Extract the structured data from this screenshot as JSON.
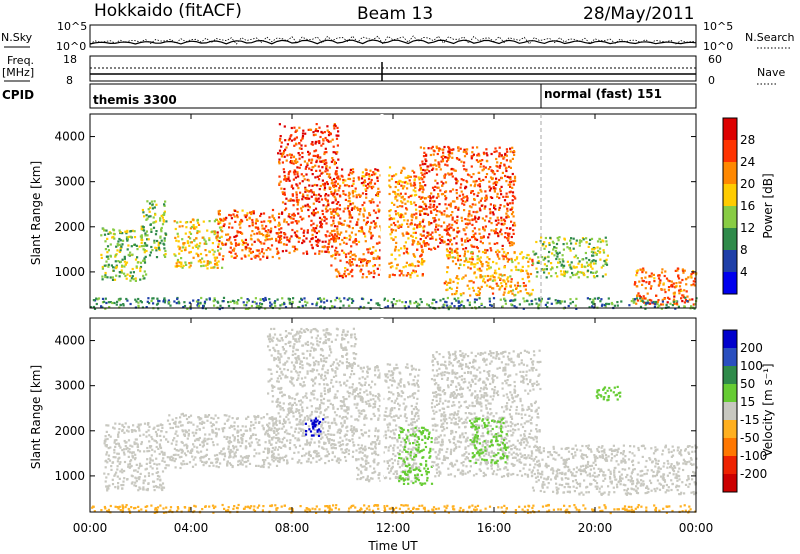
{
  "header": {
    "station": "Hokkaido (fitACF)",
    "beam": "Beam 13",
    "date": "28/May/2011"
  },
  "top_panels": {
    "nsky_label": "N.Sky",
    "nsky_ticks": [
      "10^5",
      "10^0"
    ],
    "nsearch_label": "N.Search",
    "nsearch_ticks": [
      "10^5",
      "10^0"
    ],
    "freq_label_1": "Freq.",
    "freq_label_2": "[MHz]",
    "freq_ticks": [
      "18",
      "8"
    ],
    "nave_label": "Nave",
    "nave_ticks": [
      "60",
      "0"
    ],
    "cpid_label": "CPID",
    "cpid_segments": [
      "themis 3300",
      "normal (fast) 151"
    ]
  },
  "chart_data": [
    {
      "type": "heatmap",
      "name": "power-panel",
      "ylabel": "Slant Range [km]",
      "ylim": [
        200,
        4500
      ],
      "yticks": [
        "4000",
        "3000",
        "2000",
        "1000"
      ],
      "x_hours": [
        0,
        24
      ],
      "colorbar": {
        "label": "Power [dB]",
        "ticks": [
          "28",
          "24",
          "20",
          "16",
          "12",
          "8",
          "4"
        ],
        "colors": [
          "#dd0000",
          "#ff3300",
          "#ff8800",
          "#ffcc00",
          "#88cc44",
          "#2f8a4a",
          "#1f3fa8",
          "#0000ee"
        ]
      },
      "echo_regions": [
        {
          "x": [
            0.4,
            2.2
          ],
          "y": [
            800,
            2000
          ],
          "level": 14
        },
        {
          "x": [
            2.0,
            3.0
          ],
          "y": [
            1300,
            2600
          ],
          "level": 13
        },
        {
          "x": [
            3.3,
            5.2
          ],
          "y": [
            1100,
            2200
          ],
          "level": 18
        },
        {
          "x": [
            5.0,
            7.5
          ],
          "y": [
            1300,
            2400
          ],
          "level": 24
        },
        {
          "x": [
            7.4,
            9.8
          ],
          "y": [
            1400,
            4300
          ],
          "level": 26
        },
        {
          "x": [
            9.5,
            11.5
          ],
          "y": [
            900,
            3300
          ],
          "level": 24
        },
        {
          "x": [
            11.8,
            13.2
          ],
          "y": [
            900,
            3400
          ],
          "level": 22
        },
        {
          "x": [
            13.0,
            16.8
          ],
          "y": [
            1500,
            3800
          ],
          "level": 25
        },
        {
          "x": [
            14.0,
            17.5
          ],
          "y": [
            500,
            1500
          ],
          "level": 20
        },
        {
          "x": [
            17.5,
            20.5
          ],
          "y": [
            900,
            1800
          ],
          "level": 14
        },
        {
          "x": [
            21.5,
            24.0
          ],
          "y": [
            300,
            1100
          ],
          "level": 24
        },
        {
          "x": [
            0.0,
            24.0
          ],
          "y": [
            200,
            450
          ],
          "level": 10
        }
      ]
    },
    {
      "type": "heatmap",
      "name": "velocity-panel",
      "ylabel": "Slant Range [km]",
      "xlabel": "Time UT",
      "ylim": [
        200,
        4500
      ],
      "yticks": [
        "4000",
        "3000",
        "2000",
        "1000"
      ],
      "xticks": [
        "00:00",
        "04:00",
        "08:00",
        "12:00",
        "16:00",
        "20:00",
        "00:00"
      ],
      "x_hours": [
        0,
        24
      ],
      "colorbar": {
        "label": "Velocity [m s⁻¹]",
        "ticks": [
          "200",
          "100",
          "50",
          "15",
          "-15",
          "-50",
          "-100",
          "-200"
        ],
        "colors": [
          "#0000cc",
          "#2a4fbf",
          "#2f8a4a",
          "#66cc33",
          "#c8c8c0",
          "#ffb020",
          "#ff7700",
          "#ee2200",
          "#cc0000"
        ]
      },
      "echo_regions": [
        {
          "x": [
            0.5,
            3.0
          ],
          "y": [
            700,
            2200
          ],
          "v": 0
        },
        {
          "x": [
            3.0,
            7.5
          ],
          "y": [
            1200,
            2400
          ],
          "v": 0
        },
        {
          "x": [
            7.0,
            10.5
          ],
          "y": [
            1300,
            4300
          ],
          "v": 0
        },
        {
          "x": [
            8.5,
            9.2
          ],
          "y": [
            1900,
            2300
          ],
          "v": 180
        },
        {
          "x": [
            10.5,
            13.0
          ],
          "y": [
            900,
            3500
          ],
          "v": 0
        },
        {
          "x": [
            12.2,
            13.5
          ],
          "y": [
            800,
            2100
          ],
          "v": 30
        },
        {
          "x": [
            13.5,
            17.8
          ],
          "y": [
            1000,
            3800
          ],
          "v": 0
        },
        {
          "x": [
            15.0,
            16.5
          ],
          "y": [
            1300,
            2300
          ],
          "v": 30
        },
        {
          "x": [
            17.5,
            24.0
          ],
          "y": [
            600,
            1700
          ],
          "v": 0
        },
        {
          "x": [
            20.0,
            21.0
          ],
          "y": [
            2700,
            3000
          ],
          "v": 30
        },
        {
          "x": [
            0.0,
            24.0
          ],
          "y": [
            200,
            380
          ],
          "v": -40
        }
      ]
    }
  ]
}
